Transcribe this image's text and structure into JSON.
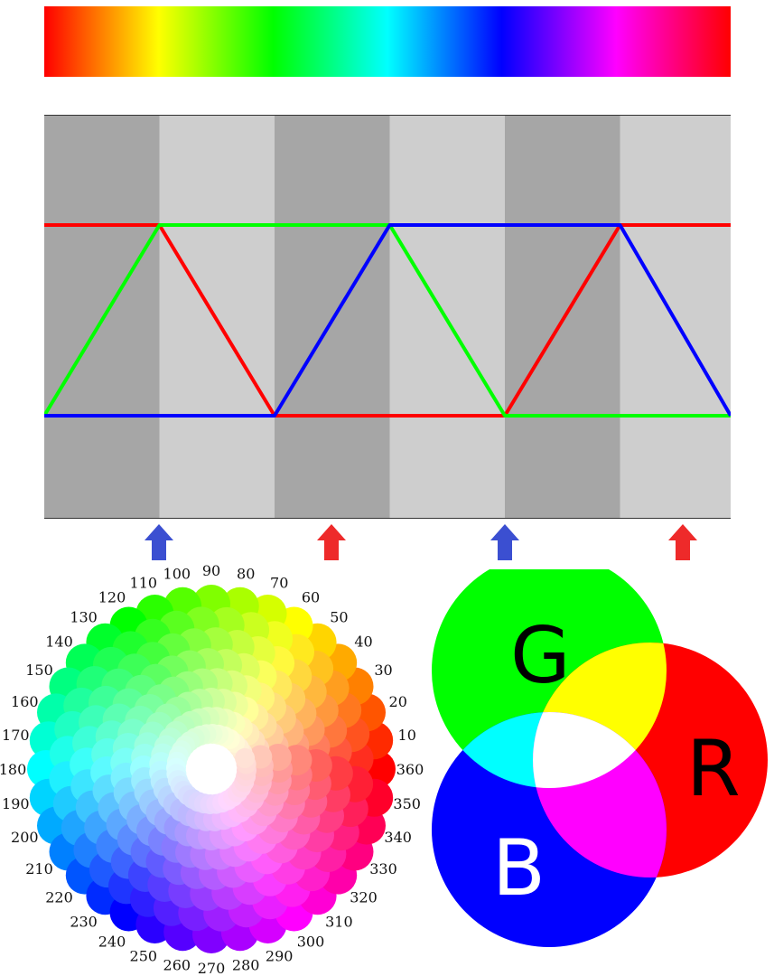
{
  "spectrum": {
    "stops": [
      "#ff0000",
      "#ffff00",
      "#00ff00",
      "#00ffff",
      "#0000ff",
      "#ff00ff",
      "#ff0000"
    ]
  },
  "graph": {
    "column_colors": [
      "#a6a6a6",
      "#cecece"
    ],
    "segments": 6,
    "channels": [
      {
        "name": "red",
        "color": "#ff0000",
        "levels": [
          1,
          1,
          0,
          0,
          0,
          1,
          1
        ]
      },
      {
        "name": "green",
        "color": "#00ff00",
        "levels": [
          0,
          1,
          1,
          1,
          0,
          0,
          0
        ]
      },
      {
        "name": "blue",
        "color": "#0000ff",
        "levels": [
          0,
          0,
          0,
          1,
          1,
          1,
          0
        ]
      }
    ]
  },
  "arrows": [
    {
      "color": "#3b4fd1"
    },
    {
      "color": "#ee2a2a"
    },
    {
      "color": "#3b4fd1"
    },
    {
      "color": "#ee2a2a"
    }
  ],
  "hue_wheel": {
    "labels": [
      "10",
      "20",
      "30",
      "40",
      "50",
      "60",
      "70",
      "80",
      "90",
      "100",
      "110",
      "120",
      "130",
      "140",
      "150",
      "160",
      "170",
      "180",
      "190",
      "200",
      "210",
      "220",
      "230",
      "240",
      "250",
      "260",
      "270",
      "280",
      "290",
      "300",
      "310",
      "320",
      "330",
      "340",
      "350",
      "360"
    ]
  },
  "venn": {
    "letters": {
      "G": "G",
      "R": "R",
      "B": "B"
    },
    "colors": {
      "red": "#ff0000",
      "green": "#00ff00",
      "blue": "#0000ff",
      "yellow": "#ffff00",
      "cyan": "#00ffff",
      "magenta": "#ff00ff",
      "white": "#ffffff"
    }
  }
}
